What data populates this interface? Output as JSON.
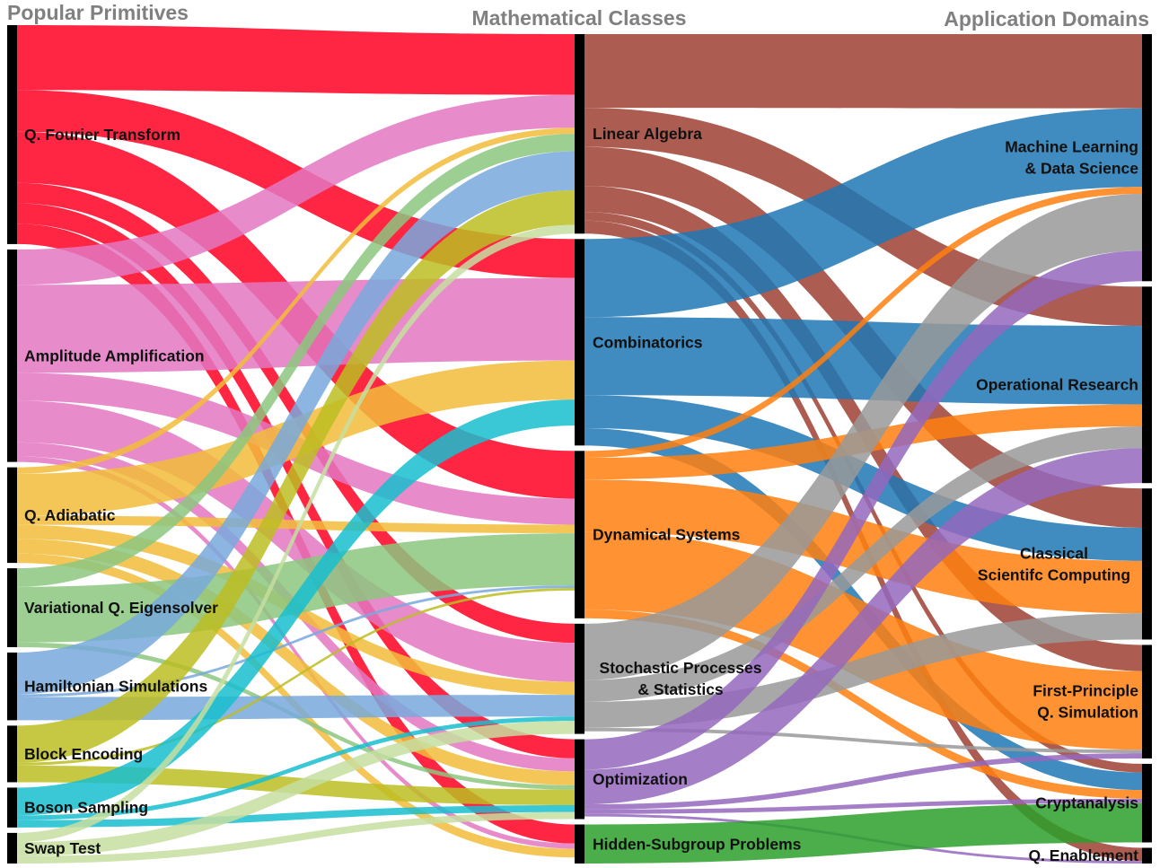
{
  "titles": {
    "left": "Popular Primitives",
    "middle": "Mathematical Classes",
    "right": "Application Domains"
  },
  "primitives": [
    {
      "id": "qft",
      "label": "Q. Fourier Transform",
      "color": "#ff0022"
    },
    {
      "id": "aa",
      "label": "Amplitude Amplification",
      "color": "#e377c2"
    },
    {
      "id": "qa",
      "label": "Q. Adiabatic",
      "color": "#f2bc3a"
    },
    {
      "id": "vqe",
      "label": "Variational Q. Eigensolver",
      "color": "#8cc57f"
    },
    {
      "id": "hs",
      "label": "Hamiltonian Simulations",
      "color": "#78a9dc"
    },
    {
      "id": "be",
      "label": "Block Encoding",
      "color": "#bcbd22"
    },
    {
      "id": "bs",
      "label": "Boson Sampling",
      "color": "#17becf"
    },
    {
      "id": "st",
      "label": "Swap Test",
      "color": "#c5dea0"
    }
  ],
  "classes": [
    {
      "id": "la",
      "label": "Linear Algebra",
      "color": "#9e3f33"
    },
    {
      "id": "co",
      "label": "Combinatorics",
      "color": "#1f77b4"
    },
    {
      "id": "ds",
      "label": "Dynamical Systems",
      "color": "#ff7f0e"
    },
    {
      "id": "sp",
      "label": [
        "Stochastic Processes",
        "& Statistics"
      ],
      "color": "#999999"
    },
    {
      "id": "op",
      "label": "Optimization",
      "color": "#9467bd"
    },
    {
      "id": "hsp",
      "label": "Hidden-Subgroup Problems",
      "color": "#2ca02c"
    }
  ],
  "domains": [
    {
      "id": "ml",
      "label": [
        "Machine Learning",
        "& Data Science"
      ]
    },
    {
      "id": "or",
      "label": "Operational Research"
    },
    {
      "id": "csc",
      "label": [
        "Classical",
        "Scientifc Computing"
      ]
    },
    {
      "id": "fpqs",
      "label": [
        "First-Principle",
        "Q. Simulation"
      ]
    },
    {
      "id": "crypt",
      "label": "Cryptanalysis"
    },
    {
      "id": "qe",
      "label": "Q. Enablement"
    }
  ],
  "flows_primitive_to_class": [
    {
      "source": "qft",
      "target": "la",
      "value": 70
    },
    {
      "source": "qft",
      "target": "co",
      "value": 45
    },
    {
      "source": "qft",
      "target": "ds",
      "value": 55
    },
    {
      "source": "qft",
      "target": "sp",
      "value": 22
    },
    {
      "source": "qft",
      "target": "op",
      "value": 22
    },
    {
      "source": "qft",
      "target": "hsp",
      "value": 22
    },
    {
      "source": "aa",
      "target": "la",
      "value": 38
    },
    {
      "source": "aa",
      "target": "co",
      "value": 95
    },
    {
      "source": "aa",
      "target": "ds",
      "value": 30
    },
    {
      "source": "aa",
      "target": "sp",
      "value": 45
    },
    {
      "source": "aa",
      "target": "op",
      "value": 15
    },
    {
      "source": "aa",
      "target": "hsp",
      "value": 6
    },
    {
      "source": "qa",
      "target": "la",
      "value": 7
    },
    {
      "source": "qa",
      "target": "co",
      "value": 45
    },
    {
      "source": "qa",
      "target": "ds",
      "value": 10
    },
    {
      "source": "qa",
      "target": "sp",
      "value": 15
    },
    {
      "source": "qa",
      "target": "op",
      "value": 16
    },
    {
      "source": "qa",
      "target": "hsp",
      "value": 10
    },
    {
      "source": "vqe",
      "target": "la",
      "value": 20
    },
    {
      "source": "vqe",
      "target": "ds",
      "value": 60
    },
    {
      "source": "vqe",
      "target": "op",
      "value": 5
    },
    {
      "source": "hs",
      "target": "la",
      "value": 45
    },
    {
      "source": "hs",
      "target": "ds",
      "value": 3
    },
    {
      "source": "hs",
      "target": "sp",
      "value": 25
    },
    {
      "source": "be",
      "target": "la",
      "value": 40
    },
    {
      "source": "be",
      "target": "ds",
      "value": 3
    },
    {
      "source": "be",
      "target": "op",
      "value": 18
    },
    {
      "source": "bs",
      "target": "co",
      "value": 30
    },
    {
      "source": "bs",
      "target": "sp",
      "value": 5
    },
    {
      "source": "bs",
      "target": "op",
      "value": 8
    },
    {
      "source": "st",
      "target": "la",
      "value": 10
    },
    {
      "source": "st",
      "target": "sp",
      "value": 15
    },
    {
      "source": "st",
      "target": "op",
      "value": 8
    }
  ],
  "flows_class_to_domain": [
    {
      "source": "la",
      "target": "ml",
      "value": 85
    },
    {
      "source": "la",
      "target": "or",
      "value": 45
    },
    {
      "source": "la",
      "target": "csc",
      "value": 45
    },
    {
      "source": "la",
      "target": "fpqs",
      "value": 30
    },
    {
      "source": "la",
      "target": "crypt",
      "value": 10
    },
    {
      "source": "la",
      "target": "qe",
      "value": 15
    },
    {
      "source": "co",
      "target": "ml",
      "value": 90
    },
    {
      "source": "co",
      "target": "or",
      "value": 90
    },
    {
      "source": "co",
      "target": "csc",
      "value": 38
    },
    {
      "source": "co",
      "target": "crypt",
      "value": 20
    },
    {
      "source": "ds",
      "target": "ml",
      "value": 8
    },
    {
      "source": "ds",
      "target": "or",
      "value": 25
    },
    {
      "source": "ds",
      "target": "csc",
      "value": 60
    },
    {
      "source": "ds",
      "target": "fpqs",
      "value": 90
    },
    {
      "source": "ds",
      "target": "crypt",
      "value": 10
    },
    {
      "source": "sp",
      "target": "ml",
      "value": 65
    },
    {
      "source": "sp",
      "target": "or",
      "value": 25
    },
    {
      "source": "sp",
      "target": "csc",
      "value": 30
    },
    {
      "source": "sp",
      "target": "fpqs",
      "value": 4
    },
    {
      "source": "op",
      "target": "ml",
      "value": 35
    },
    {
      "source": "op",
      "target": "or",
      "value": 40
    },
    {
      "source": "op",
      "target": "fpqs",
      "value": 6
    },
    {
      "source": "op",
      "target": "crypt",
      "value": 5
    },
    {
      "source": "op",
      "target": "qe",
      "value": 3
    },
    {
      "source": "hsp",
      "target": "crypt",
      "value": 45
    }
  ]
}
